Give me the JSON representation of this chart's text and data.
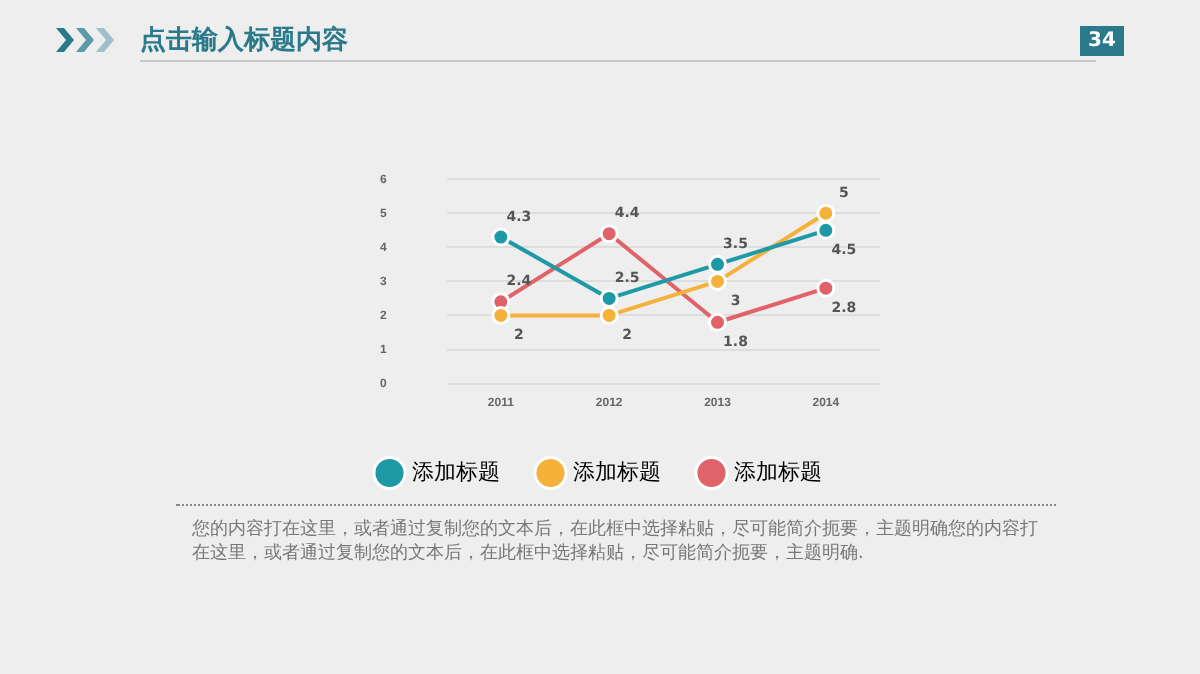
{
  "chart_data": {
    "type": "line",
    "title": "点击输入标题内容",
    "categories": [
      "2011",
      "2012",
      "2013",
      "2014"
    ],
    "series": [
      {
        "name": "添加标题",
        "color": "#1e9aa6",
        "values": [
          4.3,
          2.5,
          3.5,
          4.5
        ]
      },
      {
        "name": "添加标题",
        "color": "#f5b13a",
        "values": [
          2,
          2,
          3,
          5
        ]
      },
      {
        "name": "添加标题",
        "color": "#e0636a",
        "values": [
          2.4,
          4.4,
          1.8,
          2.8
        ]
      }
    ],
    "ylim": [
      0,
      6
    ],
    "yticks": [
      0,
      1,
      2,
      3,
      4,
      5,
      6
    ],
    "grid": "y",
    "legend": "bottom",
    "marker": "circle",
    "data_labels": true,
    "annotations": [
      "34",
      "您的内容打在这里，或者通过复制您的文本后，在此框中选择粘贴，尽可能简介扼要，主题明确您的内容打在这里，或者通过复制您的文本后，在此框中选择粘贴，尽可能简介扼要，主题明确."
    ]
  }
}
